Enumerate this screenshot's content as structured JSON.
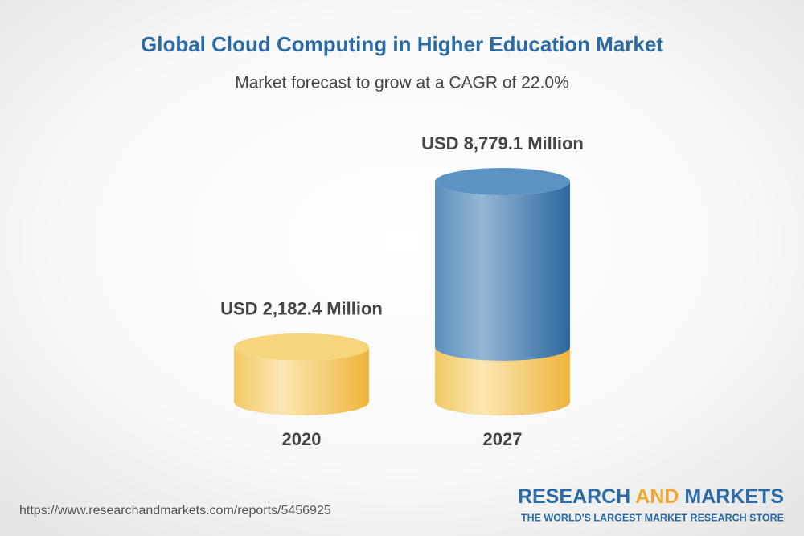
{
  "chart_data": {
    "type": "cylinder-bar",
    "title": "Global Cloud Computing in Higher Education Market",
    "subtitle": "Market forecast to grow at a CAGR of 22.0%",
    "categories": [
      "2020",
      "2027"
    ],
    "values": [
      2182.4,
      8779.1
    ],
    "value_labels": [
      "USD 2,182.4 Million",
      "USD 8,779.1 Million"
    ],
    "colors": [
      "#f2c14e",
      "#3f78ad"
    ]
  },
  "footer": {
    "url": "https://www.researchandmarkets.com/reports/5456925",
    "brand": {
      "parts": [
        "RESEARCH ",
        "AND",
        " MARKETS"
      ],
      "tagline": "THE WORLD'S LARGEST MARKET RESEARCH STORE"
    }
  }
}
